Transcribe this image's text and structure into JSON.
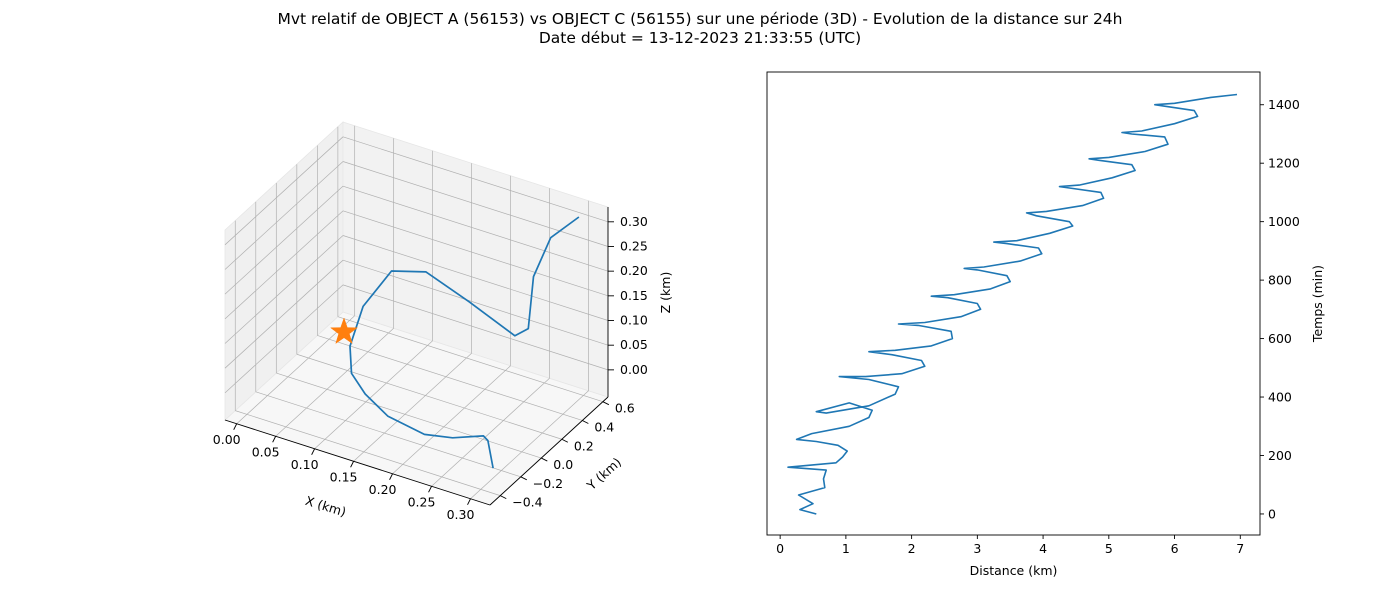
{
  "header": {
    "title_line1": "Mvt relatif de OBJECT A (56153) vs OBJECT C (56155) sur une période (3D) - Evolution de la distance sur 24h",
    "title_line2": "Date début = 13-12-2023 21:33:55 (UTC)"
  },
  "colors": {
    "series": "#1f77b4",
    "marker": "#ff7f0e",
    "pane_fill": "#f2f2f2",
    "grid": "#b0b0b0"
  },
  "chart_data": [
    {
      "type": "line3d",
      "xlabel": "X (km)",
      "ylabel": "Y (km)",
      "zlabel": "Z (km)",
      "xlim": [
        -0.015,
        0.325
      ],
      "ylim": [
        -0.5,
        0.65
      ],
      "zlim": [
        -0.055,
        0.33
      ],
      "xticks": [
        "0.00",
        "0.05",
        "0.10",
        "0.15",
        "0.20",
        "0.25",
        "0.30"
      ],
      "yticks": [
        "−0.4",
        "−0.2",
        "0.0",
        "0.2",
        "0.4",
        "0.6"
      ],
      "zticks": [
        "0.00",
        "0.05",
        "0.10",
        "0.15",
        "0.20",
        "0.25",
        "0.30"
      ],
      "xtick_values": [
        0.0,
        0.05,
        0.1,
        0.15,
        0.2,
        0.25,
        0.3
      ],
      "ytick_values": [
        -0.4,
        -0.2,
        0.0,
        0.2,
        0.4,
        0.6
      ],
      "ztick_values": [
        0.0,
        0.05,
        0.1,
        0.15,
        0.2,
        0.25,
        0.3
      ],
      "grid": true,
      "series": [
        {
          "points": [
            [
              0.3,
              0.556,
              0.315
            ],
            [
              0.264,
              0.555,
              0.255
            ],
            [
              0.247,
              0.516,
              0.175
            ],
            [
              0.25,
              0.443,
              0.085
            ],
            [
              0.237,
              0.411,
              0.07
            ],
            [
              0.176,
              0.427,
              0.105
            ],
            [
              0.117,
              0.456,
              0.13
            ],
            [
              0.073,
              0.454,
              0.11
            ],
            [
              0.047,
              0.375,
              0.04
            ],
            [
              0.045,
              0.262,
              -0.02
            ],
            [
              0.067,
              0.11,
              -0.035
            ],
            [
              0.104,
              -0.038,
              -0.03
            ],
            [
              0.154,
              -0.195,
              -0.02
            ],
            [
              0.215,
              -0.304,
              -0.005
            ],
            [
              0.253,
              -0.318,
              0.01
            ],
            [
              0.288,
              -0.283,
              0.025
            ],
            [
              0.292,
              -0.27,
              0.015
            ],
            [
              0.305,
              -0.318,
              -0.025
            ]
          ]
        }
      ],
      "marker": {
        "shape": "star",
        "point": [
          0.035,
          0.28,
          0.0
        ]
      }
    },
    {
      "type": "line",
      "xlabel": "Distance (km)",
      "ylabel": "Temps (min)",
      "xlim": [
        -0.2,
        7.3
      ],
      "ylim": [
        -72,
        1512
      ],
      "xticks": [
        0,
        1,
        2,
        3,
        4,
        5,
        6,
        7
      ],
      "yticks": [
        0,
        200,
        400,
        600,
        800,
        1000,
        1200,
        1400
      ],
      "yaxis_position": "right",
      "grid": false,
      "series": [
        {
          "x": [
            0.55,
            0.3,
            0.5,
            0.28,
            0.68,
            0.66,
            0.7,
            0.12,
            0.85,
            0.95,
            1.02,
            0.88,
            0.55,
            0.25,
            0.48,
            1.05,
            1.35,
            1.4,
            1.05,
            0.55,
            0.7,
            1.35,
            1.75,
            1.8,
            1.35,
            0.9,
            1.3,
            1.85,
            2.2,
            2.15,
            1.7,
            1.35,
            1.75,
            2.3,
            2.62,
            2.6,
            2.1,
            1.8,
            2.2,
            2.75,
            3.05,
            3.0,
            2.55,
            2.3,
            2.65,
            3.2,
            3.5,
            3.45,
            3.0,
            2.8,
            3.1,
            3.65,
            3.98,
            3.93,
            3.45,
            3.25,
            3.6,
            4.1,
            4.45,
            4.4,
            3.9,
            3.75,
            4.05,
            4.6,
            4.92,
            4.88,
            4.4,
            4.25,
            4.55,
            5.05,
            5.4,
            5.35,
            4.85,
            4.7,
            5.0,
            5.55,
            5.9,
            5.85,
            5.35,
            5.2,
            5.5,
            6.0,
            6.35,
            6.3,
            5.85,
            5.7,
            6.0,
            6.55,
            6.95
          ],
          "y": [
            0,
            15,
            35,
            65,
            90,
            120,
            150,
            160,
            175,
            195,
            215,
            235,
            248,
            255,
            275,
            300,
            330,
            355,
            380,
            350,
            345,
            370,
            410,
            435,
            460,
            470,
            470,
            480,
            505,
            525,
            545,
            555,
            560,
            575,
            600,
            625,
            645,
            650,
            655,
            675,
            700,
            720,
            740,
            745,
            750,
            770,
            795,
            815,
            835,
            840,
            845,
            865,
            890,
            910,
            925,
            930,
            935,
            960,
            985,
            1000,
            1020,
            1030,
            1035,
            1055,
            1080,
            1100,
            1115,
            1120,
            1125,
            1150,
            1175,
            1195,
            1210,
            1215,
            1220,
            1240,
            1265,
            1290,
            1300,
            1305,
            1310,
            1335,
            1360,
            1380,
            1395,
            1400,
            1405,
            1425,
            1435
          ]
        }
      ]
    }
  ]
}
